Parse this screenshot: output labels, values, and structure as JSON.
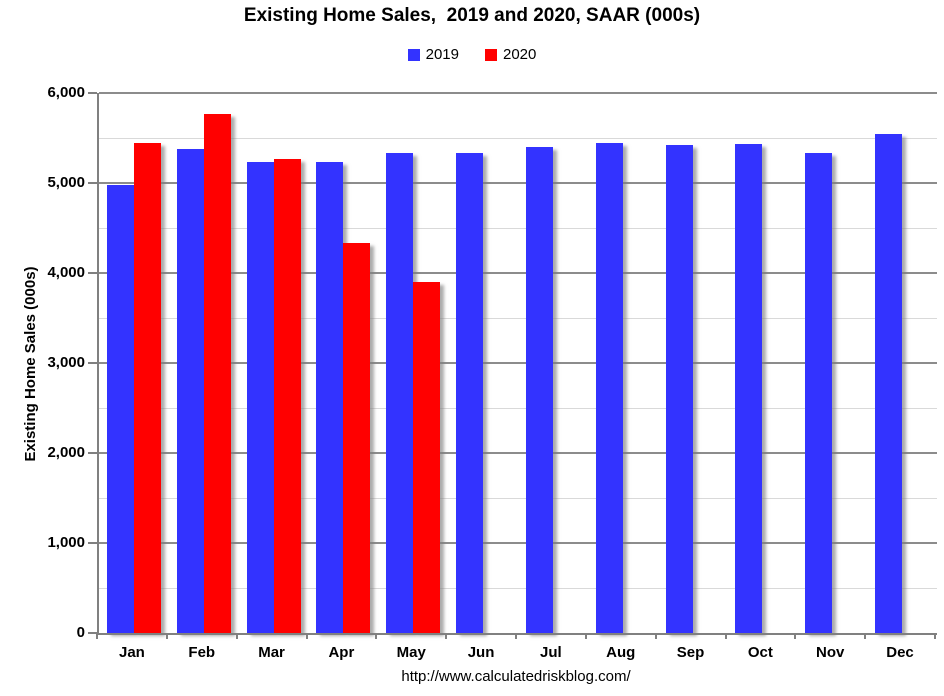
{
  "title": "Existing Home Sales,  2019 and 2020, SAAR (000s)",
  "footer_url": "http://www.calculatedriskblog.com/",
  "colors": {
    "series_2019": "#3333FF",
    "series_2020": "#FF0000",
    "major_grid": "#8c8c8c",
    "minor_grid": "#d9d9d9",
    "axis": "#808080"
  },
  "legend": [
    {
      "label": "2019",
      "color": "#3333FF"
    },
    {
      "label": "2020",
      "color": "#FF0000"
    }
  ],
  "y_tick_labels": [
    "6,000",
    "5,000",
    "4,000",
    "3,000",
    "2,000",
    "1,000",
    "0"
  ],
  "chart_data": {
    "type": "bar",
    "title": "Existing Home Sales,  2019 and 2020, SAAR (000s)",
    "ylabel": "Existing Home Sales (000s)",
    "xlabel": "",
    "categories": [
      "Jan",
      "Feb",
      "Mar",
      "Apr",
      "May",
      "Jun",
      "Jul",
      "Aug",
      "Sep",
      "Oct",
      "Nov",
      "Dec"
    ],
    "series": [
      {
        "name": "2019",
        "color": "#3333FF",
        "values": [
          4980,
          5380,
          5230,
          5230,
          5330,
          5330,
          5400,
          5440,
          5420,
          5430,
          5330,
          5540
        ]
      },
      {
        "name": "2020",
        "color": "#FF0000",
        "values": [
          5440,
          5770,
          5270,
          4330,
          3900,
          null,
          null,
          null,
          null,
          null,
          null,
          null
        ]
      }
    ],
    "ylim": [
      0,
      6000
    ],
    "y_major_step": 1000,
    "y_minor_step": 500,
    "grid": true,
    "legend_position": "top",
    "annotation": "http://www.calculatedriskblog.com/"
  }
}
